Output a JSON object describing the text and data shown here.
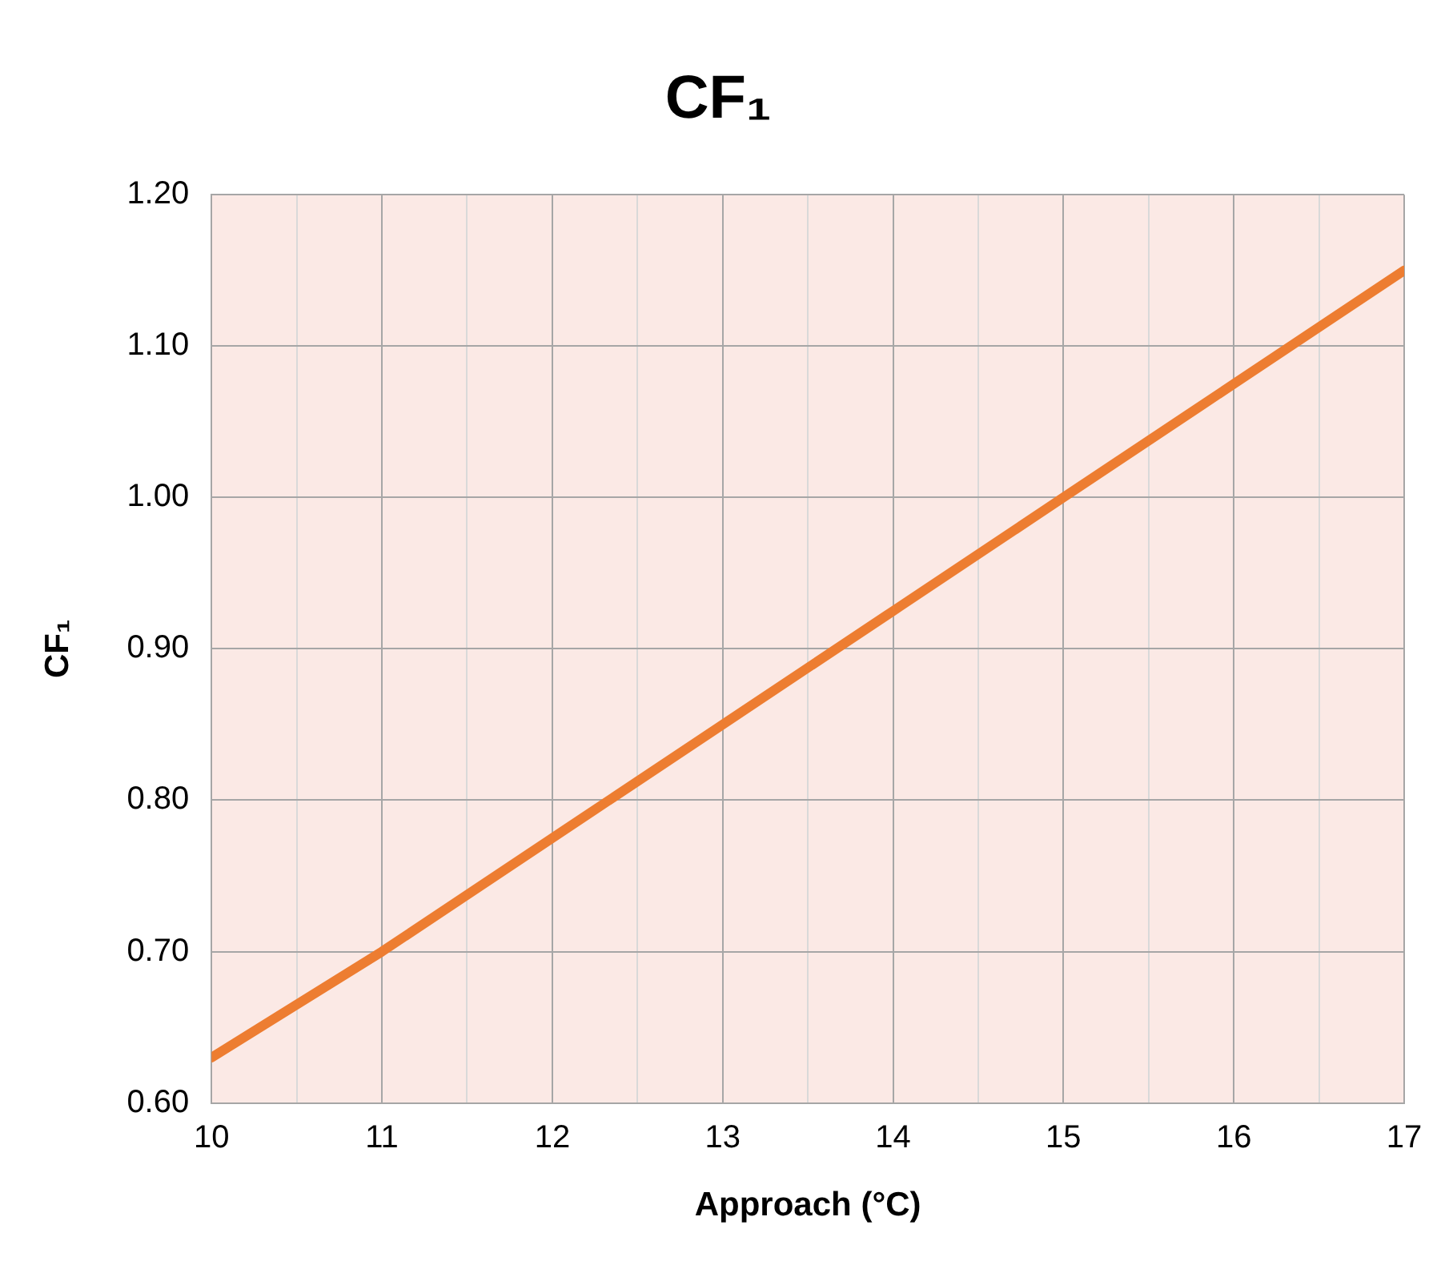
{
  "chart_data": {
    "type": "line",
    "title": "CF₁",
    "xlabel": "Approach (°C)",
    "ylabel": "CF₁",
    "x": [
      10,
      11,
      12,
      13,
      14,
      15,
      16,
      17
    ],
    "series": [
      {
        "color": "#ed7d31",
        "values": [
          0.63,
          0.7,
          0.775,
          0.85,
          0.925,
          1.0,
          1.075,
          1.15
        ]
      }
    ],
    "xlim": [
      10,
      17
    ],
    "xticks": [
      10,
      {
        "value": 10.5,
        "label": null
      },
      11,
      {
        "value": 11.5,
        "label": null
      },
      12,
      {
        "value": 12.5,
        "label": null
      },
      13,
      {
        "value": 13.5,
        "label": null
      },
      14,
      {
        "value": 14.5,
        "label": null
      },
      15,
      {
        "value": 15.5,
        "label": null
      },
      16,
      {
        "value": 16.5,
        "label": null
      },
      17
    ],
    "ylim": [
      0.6,
      1.2
    ],
    "yticks": [
      {
        "value": 0.6,
        "label": "0.60"
      },
      {
        "value": 0.7,
        "label": "0.70"
      },
      {
        "value": 0.8,
        "label": "0.80"
      },
      {
        "value": 0.9,
        "label": "0.90"
      },
      {
        "value": 1.0,
        "label": "1.00"
      },
      {
        "value": 1.1,
        "label": "1.10"
      },
      {
        "value": 1.2,
        "label": "1.20"
      }
    ],
    "grid": true,
    "legend": false,
    "marker": "none",
    "line_style": "solid"
  }
}
